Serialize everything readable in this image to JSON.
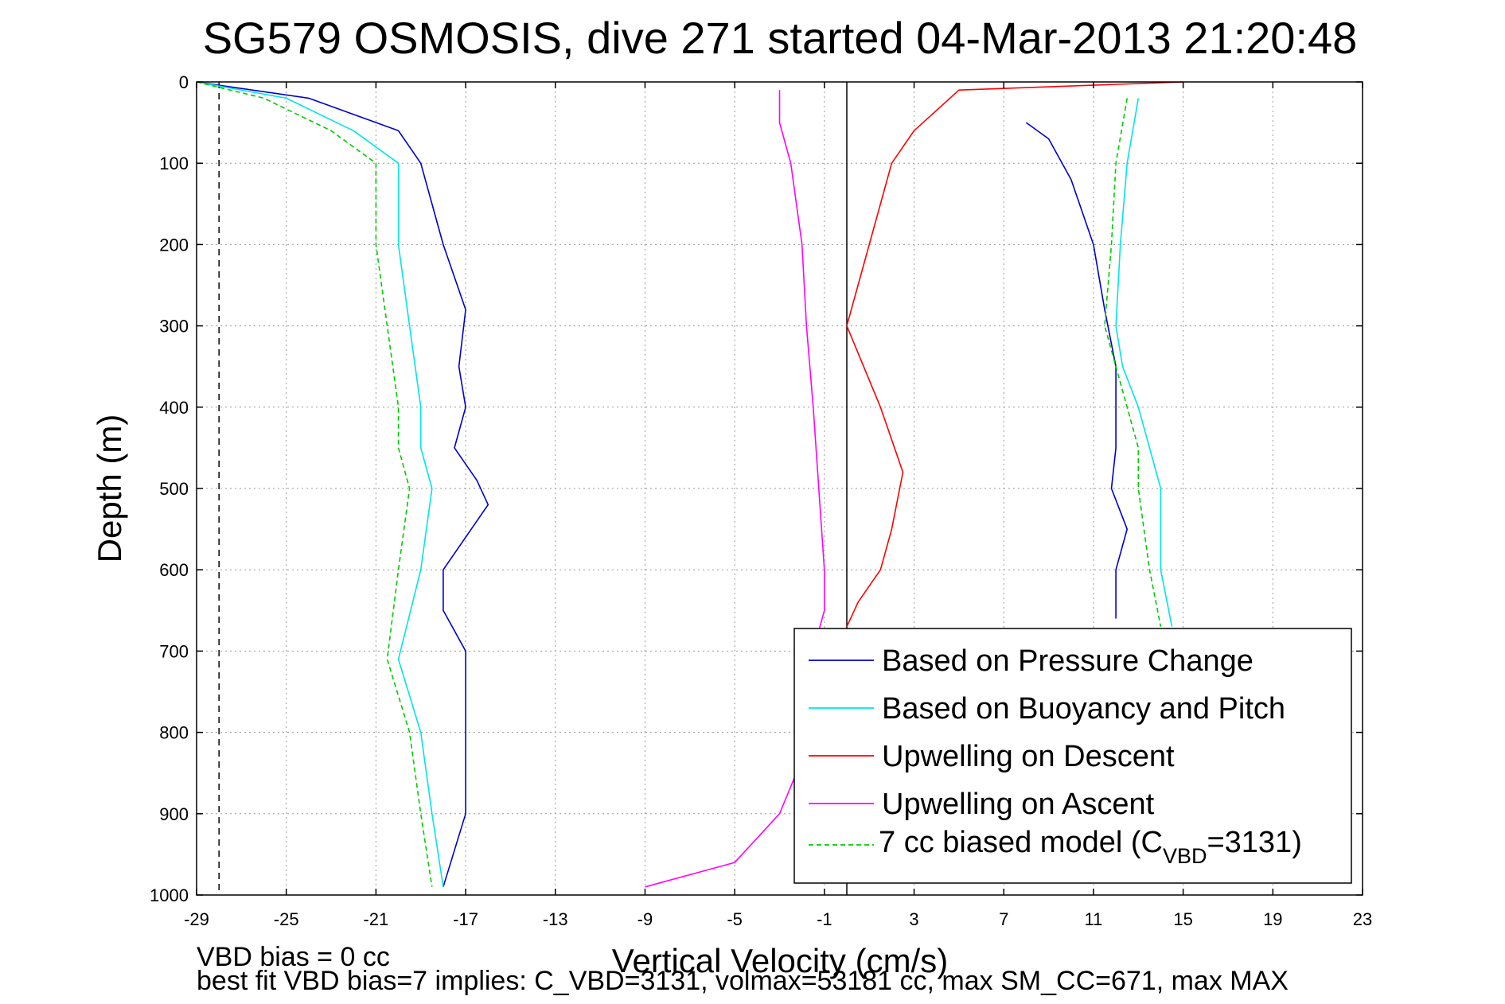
{
  "chart_data": {
    "type": "line",
    "title": "SG579 OSMOSIS, dive 271 started 04-Mar-2013 21:20:48",
    "xlabel": "Vertical Velocity (cm/s)",
    "ylabel": "Depth (m)",
    "xlim": [
      -29,
      23
    ],
    "ylim": [
      0,
      1000
    ],
    "y_reversed": true,
    "grid": true,
    "x_ticks": [
      -29,
      -25,
      -21,
      -17,
      -13,
      -9,
      -5,
      -1,
      3,
      7,
      11,
      15,
      19,
      23
    ],
    "y_ticks": [
      0,
      100,
      200,
      300,
      400,
      500,
      600,
      700,
      800,
      900,
      1000
    ],
    "legend_position": "bottom-right",
    "reference_lines": [
      {
        "x": -28,
        "style": "dashed",
        "color": "#000000"
      },
      {
        "x": 0,
        "style": "solid",
        "color": "#000000"
      }
    ],
    "series": [
      {
        "name": "Based on Pressure Change",
        "color": "#0000cc",
        "style": "solid",
        "segments": [
          {
            "x": [
              -29,
              -24,
              -20,
              -19,
              -18,
              -17,
              -17.3,
              -17,
              -17.5,
              -16.5,
              -16,
              -18,
              -18,
              -17,
              -17,
              -18
            ],
            "y": [
              0,
              20,
              60,
              100,
              200,
              280,
              350,
              400,
              450,
              490,
              520,
              600,
              650,
              700,
              900,
              990
            ]
          },
          {
            "x": [
              8,
              9,
              10,
              11,
              11.5,
              12,
              12,
              12,
              11.8,
              12.5,
              12,
              12,
              12
            ],
            "y": [
              50,
              70,
              120,
              200,
              280,
              350,
              400,
              450,
              500,
              550,
              600,
              650,
              660
            ]
          }
        ]
      },
      {
        "name": "Based on Buoyancy and Pitch",
        "color": "#00e5e5",
        "style": "solid",
        "segments": [
          {
            "x": [
              -29,
              -25,
              -22,
              -20,
              -20,
              -19.5,
              -19,
              -19,
              -18.5,
              -19,
              -20,
              -19,
              -18.5,
              -18
            ],
            "y": [
              0,
              20,
              60,
              100,
              200,
              300,
              400,
              450,
              500,
              600,
              710,
              800,
              900,
              990
            ]
          },
          {
            "x": [
              13,
              12.5,
              12.2,
              12,
              12.3,
              13,
              13.5,
              14,
              14,
              14.5
            ],
            "y": [
              20,
              100,
              200,
              300,
              350,
              400,
              450,
              500,
              600,
              670
            ]
          }
        ]
      },
      {
        "name": "Upwelling on Descent",
        "color": "#ff0000",
        "style": "solid",
        "segments": [
          {
            "x": [
              15,
              5,
              3,
              2,
              1.5,
              1,
              0.5,
              0,
              1.5,
              2.5,
              2,
              1.5,
              0.5,
              0
            ],
            "y": [
              0,
              10,
              60,
              100,
              150,
              200,
              250,
              300,
              400,
              480,
              550,
              600,
              640,
              670
            ]
          }
        ]
      },
      {
        "name": "Upwelling on Ascent",
        "color": "#ff00ff",
        "style": "solid",
        "segments": [
          {
            "x": [
              -9,
              -5,
              -3,
              -1.5,
              -1.5,
              -1,
              -1,
              -1.5,
              -1.8,
              -2,
              -2.5,
              -3,
              -3
            ],
            "y": [
              990,
              960,
              900,
              800,
              700,
              650,
              600,
              400,
              300,
              200,
              100,
              50,
              10
            ]
          }
        ]
      },
      {
        "name": "7 cc biased model (C_VBD=3131)",
        "color": "#00cc00",
        "style": "dashed",
        "segments": [
          {
            "x": [
              -29,
              -26,
              -23,
              -21,
              -21,
              -20.5,
              -20,
              -20,
              -19.5,
              -20,
              -20.5,
              -19.5,
              -19,
              -18.5
            ],
            "y": [
              0,
              20,
              60,
              100,
              200,
              300,
              400,
              450,
              500,
              600,
              710,
              800,
              900,
              990
            ]
          },
          {
            "x": [
              12.5,
              12,
              11.8,
              11.5,
              12,
              12.5,
              13,
              13,
              13.5,
              14
            ],
            "y": [
              20,
              100,
              200,
              300,
              350,
              400,
              450,
              500,
              600,
              670
            ]
          }
        ]
      }
    ],
    "annotations": [
      "VBD bias = 0 cc",
      "best fit VBD bias=7 implies: C_VBD=3131, volmax=53181 cc, max SM_CC=671, max MAX"
    ]
  },
  "legend_label_parts": {
    "model_prefix": "7 cc biased model (C",
    "model_subscript": "VBD",
    "model_suffix": "=3131)"
  }
}
